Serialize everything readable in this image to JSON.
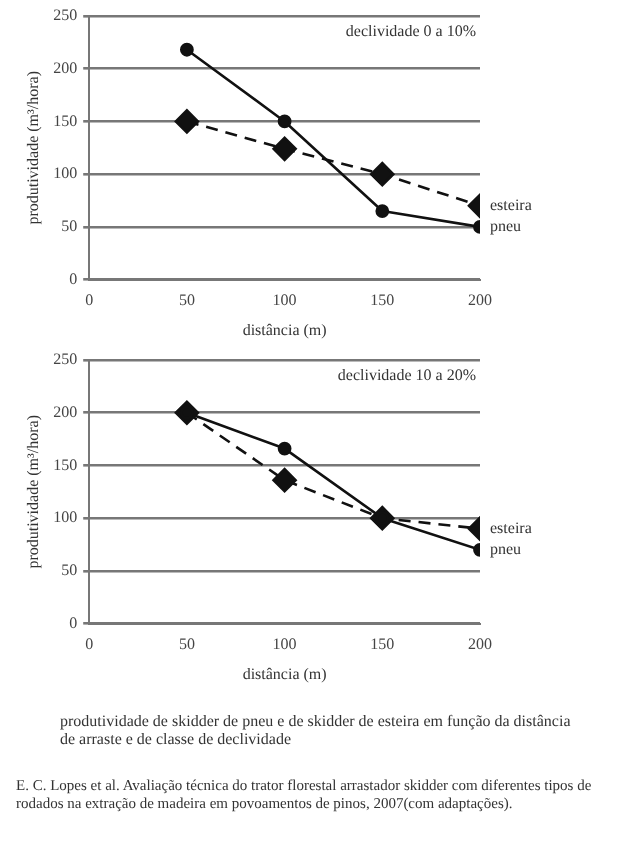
{
  "chart_data": [
    {
      "type": "line",
      "title": "declividade 0 a 10%",
      "xlabel": "distância (m)",
      "ylabel": "produtividade (m³/hora)",
      "x": [
        50,
        100,
        150,
        200
      ],
      "xlim": [
        0,
        200
      ],
      "xticks": [
        0,
        50,
        100,
        150,
        200
      ],
      "ylim": [
        0,
        250
      ],
      "yticks": [
        0,
        50,
        100,
        150,
        200,
        250
      ],
      "grid": "y",
      "legend": false,
      "series": [
        {
          "name": "esteira",
          "color": "#111111",
          "values": [
            150,
            124,
            100,
            70
          ],
          "marker": "diamond",
          "line_style": "dashed"
        },
        {
          "name": "pneu",
          "color": "#111111",
          "values": [
            218,
            150,
            65,
            50
          ],
          "marker": "circle",
          "line_style": "solid"
        }
      ]
    },
    {
      "type": "line",
      "title": "declividade 10 a 20%",
      "xlabel": "distância (m)",
      "ylabel": "produtividade (m³/hora)",
      "x": [
        50,
        100,
        150,
        200
      ],
      "xlim": [
        0,
        200
      ],
      "xticks": [
        0,
        50,
        100,
        150,
        200
      ],
      "ylim": [
        0,
        250
      ],
      "yticks": [
        0,
        50,
        100,
        150,
        200,
        250
      ],
      "grid": "y",
      "legend": false,
      "series": [
        {
          "name": "esteira",
          "color": "#111111",
          "values": [
            200,
            136,
            100,
            90
          ],
          "marker": "diamond",
          "line_style": "dashed"
        },
        {
          "name": "pneu",
          "color": "#111111",
          "values": [
            200,
            166,
            100,
            70
          ],
          "marker": "circle",
          "line_style": "solid"
        }
      ],
      "annotations": [
        "produtividade de skidder de pneu e de skidder de esteira em função da distância de arraste e de classe de declividade",
        "E. C. Lopes et al. Avaliação técnica do trator florestal arrastador skidder com diferentes tipos de rodados na extração de madeira em povoamentos de pinos, 2007(com adaptações)."
      ]
    }
  ]
}
